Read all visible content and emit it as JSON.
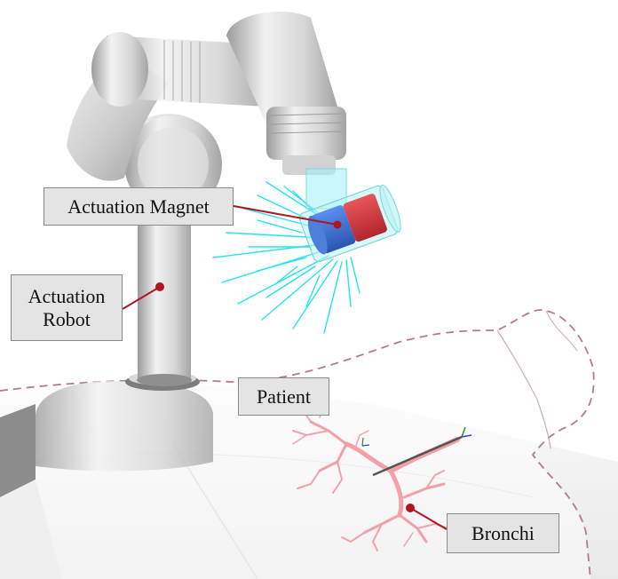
{
  "labels": {
    "actuation_magnet": "Actuation Magnet",
    "actuation_robot_line1": "Actuation",
    "actuation_robot_line2": "Robot",
    "patient": "Patient",
    "bronchi": "Bronchi"
  },
  "colors": {
    "robot_body": "#d4d4d4",
    "robot_shadow": "#a9a9a9",
    "field_lines": "#22e4f0",
    "magnet_north": "#d9363e",
    "magnet_south": "#3a74d8",
    "bronchi": "#f3a0a8",
    "patient_outline": "#b07d8a",
    "leader_line": "#b01622",
    "label_fill": "#e4e4e4",
    "label_border": "#8a8a8a"
  }
}
